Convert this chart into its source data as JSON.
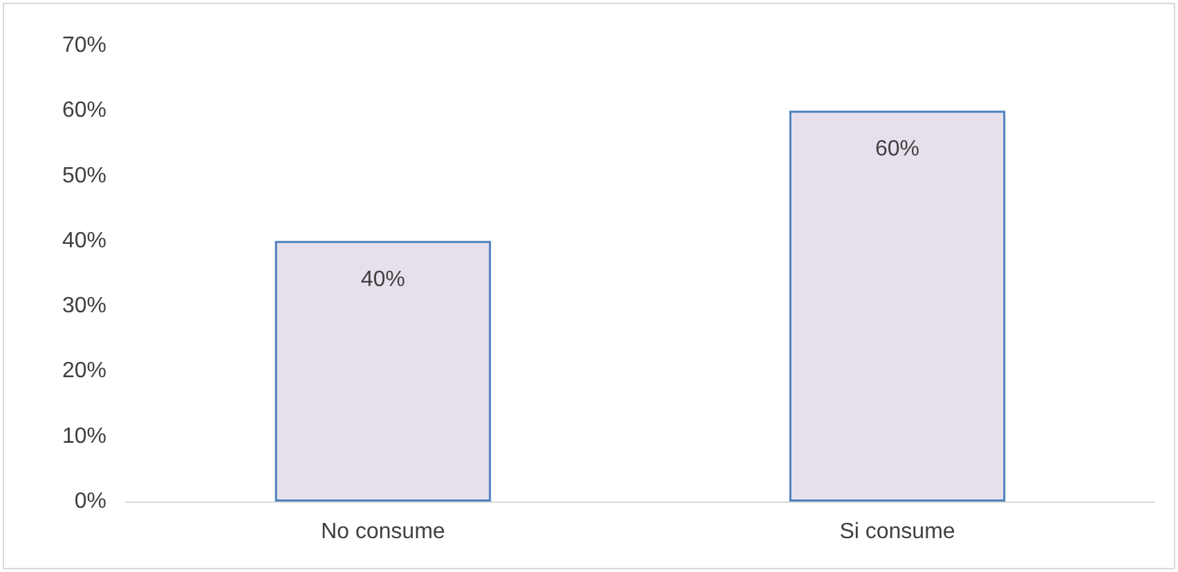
{
  "chart_data": {
    "type": "bar",
    "categories": [
      "No consume",
      "Si consume"
    ],
    "values": [
      40,
      60
    ],
    "value_labels": [
      "40%",
      "60%"
    ],
    "color": "#e6e0ec",
    "ylim": [
      0,
      70
    ],
    "yticks": [
      {
        "value": 0,
        "label": "0%"
      },
      {
        "value": 10,
        "label": "10%"
      },
      {
        "value": 20,
        "label": "20%"
      },
      {
        "value": 30,
        "label": "30%"
      },
      {
        "value": 40,
        "label": "40%"
      },
      {
        "value": 50,
        "label": "50%"
      },
      {
        "value": 60,
        "label": "60%"
      },
      {
        "value": 70,
        "label": "70%"
      }
    ],
    "grid": false
  }
}
